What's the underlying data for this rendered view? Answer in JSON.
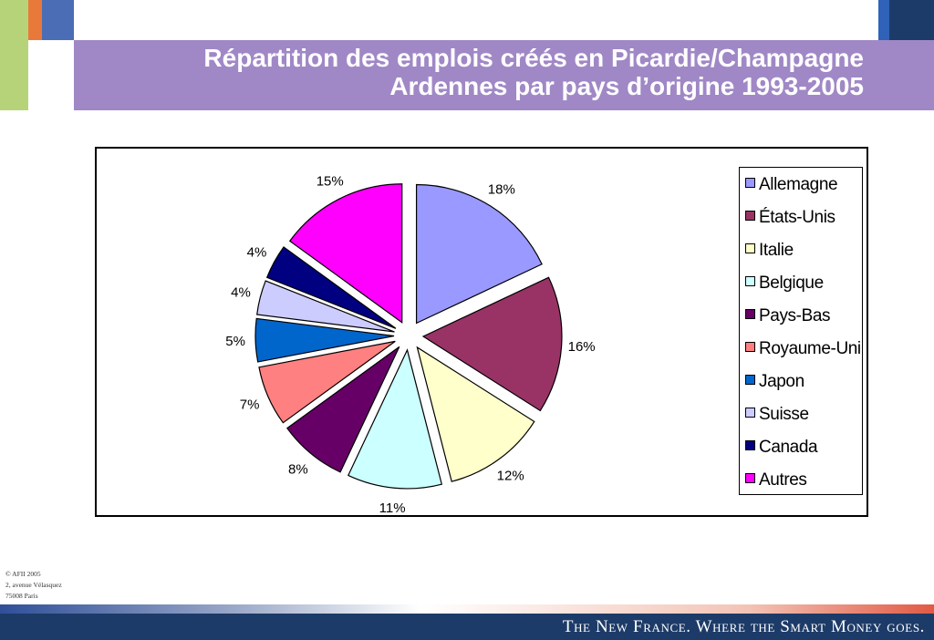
{
  "title": {
    "line1": "Répartition des emplois créés en Picardie/Champagne",
    "line2": "Ardennes par pays d’origine 1993-2005"
  },
  "colors": {
    "title_bar": "#a088c6",
    "footer_band": "#1d3b68",
    "accent_green": "#b7d37a",
    "accent_orange": "#e8793a",
    "accent_blue": "#4a6db5",
    "accent_navy": "#1d3b68"
  },
  "chart_data": {
    "type": "pie",
    "exploded": true,
    "legend_position": "right",
    "slices": [
      {
        "name": "Allemagne",
        "value": 18,
        "label": "18%",
        "color": "#9999ff"
      },
      {
        "name": "États-Unis",
        "value": 16,
        "label": "16%",
        "color": "#993366"
      },
      {
        "name": "Italie",
        "value": 12,
        "label": "12%",
        "color": "#ffffcc"
      },
      {
        "name": "Belgique",
        "value": 11,
        "label": "11%",
        "color": "#ccffff"
      },
      {
        "name": "Pays-Bas",
        "value": 8,
        "label": "8%",
        "color": "#660066"
      },
      {
        "name": "Royaume-Uni",
        "value": 7,
        "label": "7%",
        "color": "#ff8080"
      },
      {
        "name": "Japon",
        "value": 5,
        "label": "5%",
        "color": "#0066cc"
      },
      {
        "name": "Suisse",
        "value": 4,
        "label": "4%",
        "color": "#ccccff"
      },
      {
        "name": "Canada",
        "value": 4,
        "label": "4%",
        "color": "#000080"
      },
      {
        "name": "Autres",
        "value": 15,
        "label": "15%",
        "color": "#ff00ff"
      }
    ]
  },
  "footer": {
    "copyright": "© AFII 2005",
    "address1": "2, avenue Vélasquez",
    "address2": "75008 Paris",
    "slogan": "The New France. Where the Smart Money goes."
  }
}
